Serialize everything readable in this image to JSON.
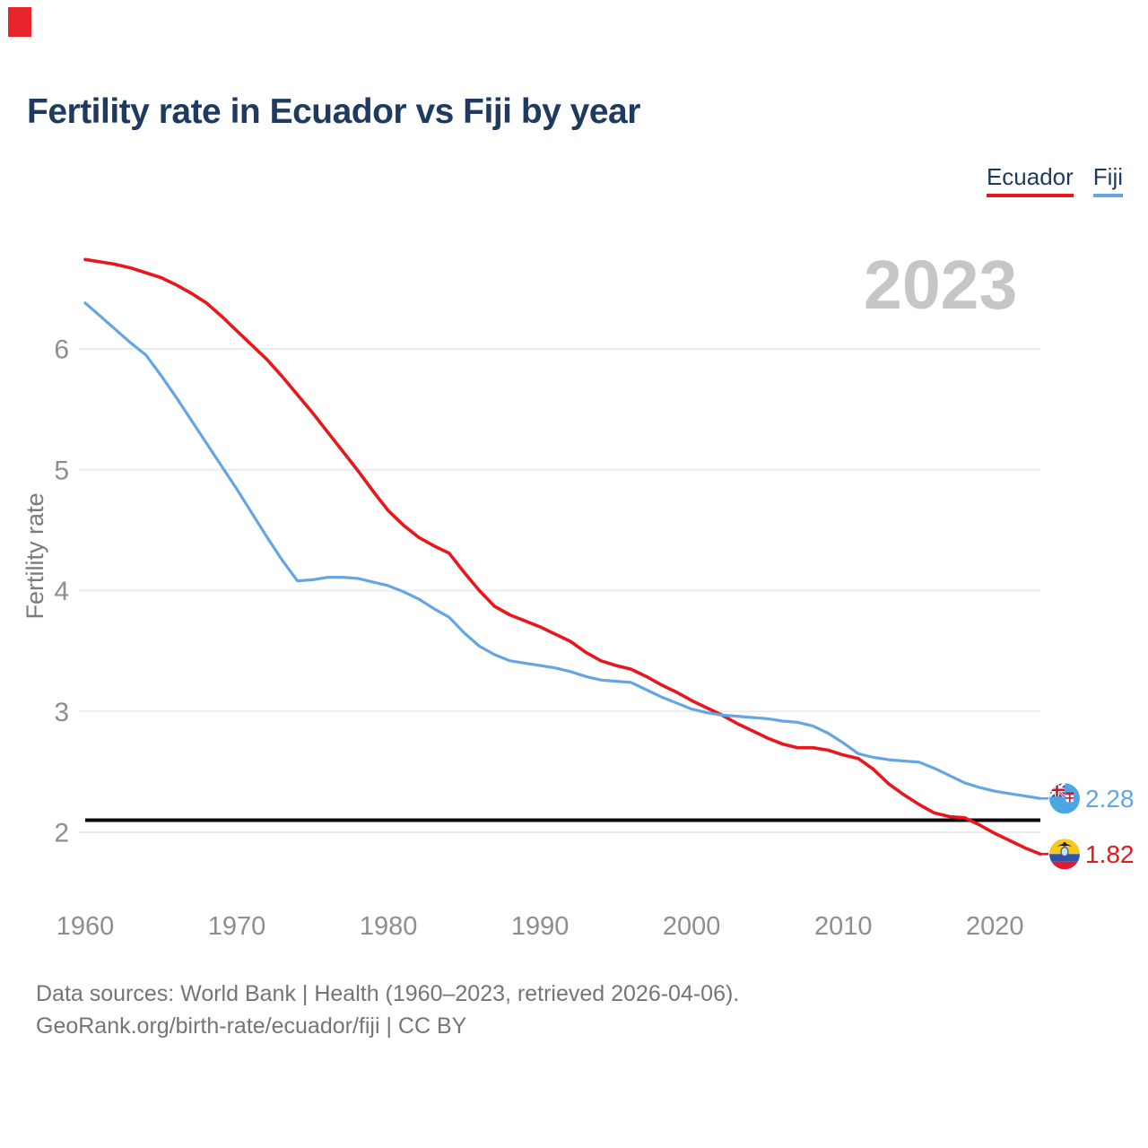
{
  "watermark": "2023",
  "colors": {
    "background": "#ffffff",
    "title_text": "#1e3a5f",
    "axis_text": "#8e8e8e",
    "axis_label_text": "#7a7a7a",
    "grid_line": "#ececec",
    "watermark_text": "#c6c6c6",
    "footer_text": "#757575",
    "reference_line": "#0a0a0a",
    "corner_marker": "#e8252a",
    "ecuador_red": "#e8171d",
    "fiji_blue": "#64a5e4"
  },
  "footer": {
    "line1": "Data sources: World Bank | Health (1960–2023, retrieved 2026-04-06).",
    "line2": "GeoRank.org/birth-rate/ecuador/fiji | CC BY"
  },
  "chart_data": {
    "type": "line",
    "title": "Fertility rate in Ecuador vs Fiji by year",
    "xlabel": "",
    "ylabel": "Fertility rate",
    "x_ticks": [
      "1960",
      "1970",
      "1980",
      "1990",
      "2000",
      "2010",
      "2020"
    ],
    "y_ticks": [
      2,
      3,
      4,
      5,
      6
    ],
    "xlim": [
      1960,
      2023
    ],
    "ylim": [
      1.7,
      6.9
    ],
    "grid": "horizontal",
    "legend_position": "top-right",
    "watermark": "2023",
    "reference_line": {
      "value": 2.1,
      "color": "#0a0a0a"
    },
    "years": [
      1960,
      1961,
      1962,
      1963,
      1964,
      1965,
      1966,
      1967,
      1968,
      1969,
      1970,
      1971,
      1972,
      1973,
      1974,
      1975,
      1976,
      1977,
      1978,
      1979,
      1980,
      1981,
      1982,
      1983,
      1984,
      1985,
      1986,
      1987,
      1988,
      1989,
      1990,
      1991,
      1992,
      1993,
      1994,
      1995,
      1996,
      1997,
      1998,
      1999,
      2000,
      2001,
      2002,
      2003,
      2004,
      2005,
      2006,
      2007,
      2008,
      2009,
      2010,
      2011,
      2012,
      2013,
      2014,
      2015,
      2016,
      2017,
      2018,
      2019,
      2020,
      2021,
      2022,
      2023
    ],
    "series": [
      {
        "name": "Ecuador",
        "color": "#e8171d",
        "flag": "ecuador",
        "end_label": "1.82",
        "end_value": 1.82,
        "values": [
          6.74,
          6.72,
          6.7,
          6.67,
          6.63,
          6.59,
          6.53,
          6.46,
          6.38,
          6.27,
          6.15,
          6.03,
          5.91,
          5.77,
          5.62,
          5.47,
          5.31,
          5.15,
          4.99,
          4.82,
          4.66,
          4.54,
          4.44,
          4.37,
          4.31,
          4.15,
          4.0,
          3.87,
          3.8,
          3.75,
          3.7,
          3.64,
          3.58,
          3.49,
          3.42,
          3.38,
          3.35,
          3.29,
          3.22,
          3.16,
          3.09,
          3.03,
          2.97,
          2.9,
          2.84,
          2.78,
          2.73,
          2.7,
          2.7,
          2.68,
          2.64,
          2.61,
          2.52,
          2.4,
          2.31,
          2.23,
          2.16,
          2.13,
          2.12,
          2.06,
          1.99,
          1.93,
          1.87,
          1.82
        ]
      },
      {
        "name": "Fiji",
        "color": "#64a5e4",
        "flag": "fiji",
        "end_label": "2.28",
        "end_value": 2.28,
        "values": [
          6.38,
          6.27,
          6.16,
          6.05,
          5.95,
          5.78,
          5.6,
          5.41,
          5.22,
          5.03,
          4.84,
          4.64,
          4.44,
          4.25,
          4.08,
          4.09,
          4.11,
          4.11,
          4.1,
          4.07,
          4.04,
          3.99,
          3.93,
          3.85,
          3.78,
          3.65,
          3.54,
          3.47,
          3.42,
          3.4,
          3.38,
          3.36,
          3.33,
          3.29,
          3.26,
          3.25,
          3.24,
          3.18,
          3.12,
          3.07,
          3.02,
          2.99,
          2.97,
          2.96,
          2.95,
          2.94,
          2.92,
          2.91,
          2.88,
          2.82,
          2.74,
          2.65,
          2.62,
          2.6,
          2.59,
          2.58,
          2.53,
          2.47,
          2.41,
          2.37,
          2.34,
          2.32,
          2.3,
          2.28
        ]
      }
    ]
  }
}
